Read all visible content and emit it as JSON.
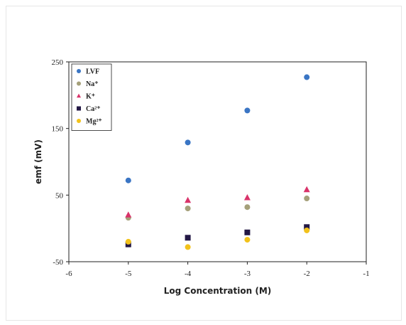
{
  "chart_data": {
    "type": "scatter",
    "xlabel": "Log Concentration (M)",
    "ylabel": "emf (mV)",
    "xlim": [
      -6,
      -1
    ],
    "ylim": [
      -50,
      250
    ],
    "xticks": [
      "-6",
      "-5",
      "-4",
      "-3",
      "-2",
      "-1"
    ],
    "yticks": [
      "-50",
      "50",
      "150",
      "250"
    ],
    "grid": false,
    "legend_position": "top-left inside",
    "series": [
      {
        "name": "LVF",
        "color": "#3a75c4",
        "marker": "circle",
        "x": [
          -5,
          -4,
          -3,
          -2
        ],
        "y": [
          72,
          129,
          177,
          227
        ]
      },
      {
        "name": "Na⁺",
        "color": "#a5a07a",
        "marker": "circle",
        "x": [
          -5,
          -4,
          -3,
          -2
        ],
        "y": [
          16,
          30,
          32,
          45
        ]
      },
      {
        "name": "K⁺",
        "color": "#d9336a",
        "marker": "triangle",
        "x": [
          -5,
          -4,
          -3,
          -2
        ],
        "y": [
          20,
          42,
          46,
          58
        ]
      },
      {
        "name": "Ca²⁺",
        "color": "#231845",
        "marker": "square",
        "x": [
          -5,
          -4,
          -3,
          -2
        ],
        "y": [
          -24,
          -14,
          -6,
          2
        ]
      },
      {
        "name": "Mg²⁺",
        "color": "#f2c21b",
        "marker": "circle",
        "x": [
          -5,
          -4,
          -3,
          -2
        ],
        "y": [
          -20,
          -28,
          -17,
          -3
        ]
      }
    ]
  }
}
